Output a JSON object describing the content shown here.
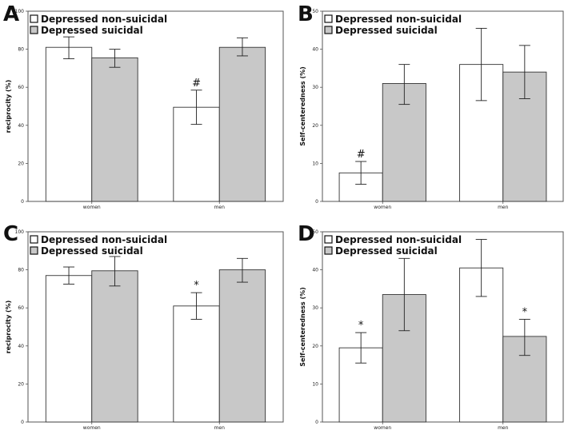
{
  "colors": {
    "non_suicidal": "#ffffff",
    "suicidal": "#c8c8c8",
    "stroke": "#333333"
  },
  "chart_data": [
    {
      "panel": "A",
      "type": "bar",
      "categories": [
        "women",
        "men"
      ],
      "ylabel": "reciprocity (%)",
      "ylim": [
        0,
        100
      ],
      "yticks": [
        0,
        20,
        40,
        60,
        80,
        100
      ],
      "legend": [
        "Depressed non-suicidal",
        "Depressed suicidal"
      ],
      "series": [
        {
          "name": "Depressed non-suicidal",
          "values": [
            81,
            49.5
          ],
          "err_low": [
            75,
            40.5
          ],
          "err_high": [
            86.5,
            58.5
          ],
          "markers": [
            "",
            "#"
          ]
        },
        {
          "name": "Depressed suicidal",
          "values": [
            75.5,
            81
          ],
          "err_low": [
            70.5,
            76.5
          ],
          "err_high": [
            80,
            86
          ],
          "markers": [
            "",
            ""
          ]
        }
      ]
    },
    {
      "panel": "B",
      "type": "bar",
      "categories": [
        "women",
        "men"
      ],
      "ylabel": "Self-centeredness (%)",
      "ylim": [
        0,
        50
      ],
      "yticks": [
        0,
        10,
        20,
        30,
        40,
        50
      ],
      "legend": [
        "Depressed non-suicidal",
        "Depressed suicidal"
      ],
      "series": [
        {
          "name": "Depressed non-suicidal",
          "values": [
            7.5,
            36
          ],
          "err_low": [
            4.5,
            26.5
          ],
          "err_high": [
            10.5,
            45.5
          ],
          "markers": [
            "#",
            ""
          ]
        },
        {
          "name": "Depressed suicidal",
          "values": [
            31,
            34
          ],
          "err_low": [
            25.5,
            27
          ],
          "err_high": [
            36,
            41
          ],
          "markers": [
            "",
            ""
          ]
        }
      ]
    },
    {
      "panel": "C",
      "type": "bar",
      "categories": [
        "women",
        "men"
      ],
      "ylabel": "reciprocity (%)",
      "ylim": [
        0,
        100
      ],
      "yticks": [
        0,
        20,
        40,
        60,
        80,
        100
      ],
      "legend": [
        "Depressed non-suicidal",
        "Depressed suicidal"
      ],
      "series": [
        {
          "name": "Depressed non-suicidal",
          "values": [
            77,
            61
          ],
          "err_low": [
            72.5,
            54
          ],
          "err_high": [
            81.5,
            68
          ],
          "markers": [
            "",
            "*"
          ]
        },
        {
          "name": "Depressed suicidal",
          "values": [
            79.5,
            80
          ],
          "err_low": [
            71.5,
            73.5
          ],
          "err_high": [
            87,
            86
          ],
          "markers": [
            "",
            ""
          ]
        }
      ]
    },
    {
      "panel": "D",
      "type": "bar",
      "categories": [
        "women",
        "men"
      ],
      "ylabel": "Self-centeredness (%)",
      "ylim": [
        0,
        50
      ],
      "yticks": [
        0,
        10,
        20,
        30,
        40,
        50
      ],
      "legend": [
        "Depressed non-suicidal",
        "Depressed suicidal"
      ],
      "series": [
        {
          "name": "Depressed non-suicidal",
          "values": [
            19.5,
            40.5
          ],
          "err_low": [
            15.5,
            33
          ],
          "err_high": [
            23.5,
            48
          ],
          "markers": [
            "*",
            ""
          ]
        },
        {
          "name": "Depressed suicidal",
          "values": [
            33.5,
            22.5
          ],
          "err_low": [
            24,
            17.5
          ],
          "err_high": [
            43,
            27
          ],
          "markers": [
            "",
            "*"
          ]
        }
      ]
    }
  ]
}
